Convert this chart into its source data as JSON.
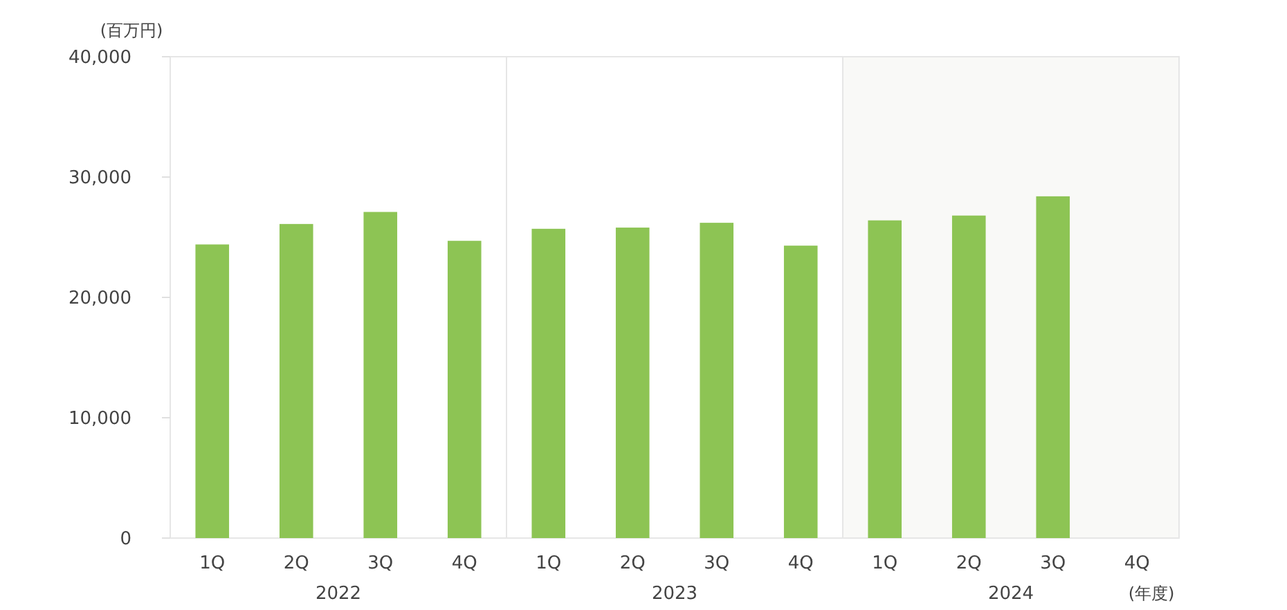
{
  "chart_data": [
    {
      "type": "bar",
      "ylabel": "(百万円)",
      "xlabel": "2022",
      "categories": [
        "1Q",
        "2Q",
        "3Q",
        "4Q"
      ],
      "values": [
        24400,
        26100,
        27100,
        24700
      ],
      "color": "#8dc454",
      "ylim": [
        0,
        40000
      ],
      "yticks": [
        0,
        {
          "value": 10000,
          "label": "10,000"
        },
        {
          "value": 20000,
          "label": "20,000"
        },
        {
          "value": 30000,
          "label": "30,000"
        },
        {
          "value": 40000,
          "label": "40,000"
        }
      ]
    },
    {
      "type": "bar",
      "xlabel": "2023",
      "categories": [
        "1Q",
        "2Q",
        "3Q",
        "4Q"
      ],
      "values": [
        25700,
        25800,
        26200,
        24300
      ],
      "color": "#8dc454",
      "ylim": [
        0,
        40000
      ],
      "tick_labels": "x"
    },
    {
      "type": "bar",
      "xlabel": "2024",
      "categories": [
        "1Q",
        "2Q",
        "3Q",
        "4Q"
      ],
      "values": [
        26400,
        26800,
        28400,
        null
      ],
      "color": "#8dc454",
      "ylim": [
        0,
        40000
      ],
      "tick_labels": "x",
      "bands": [
        {
          "axis": "x",
          "from": "1Q",
          "to": "4Q",
          "color": "#f9f9f7"
        }
      ],
      "annotations": [
        "(年度)"
      ]
    }
  ]
}
